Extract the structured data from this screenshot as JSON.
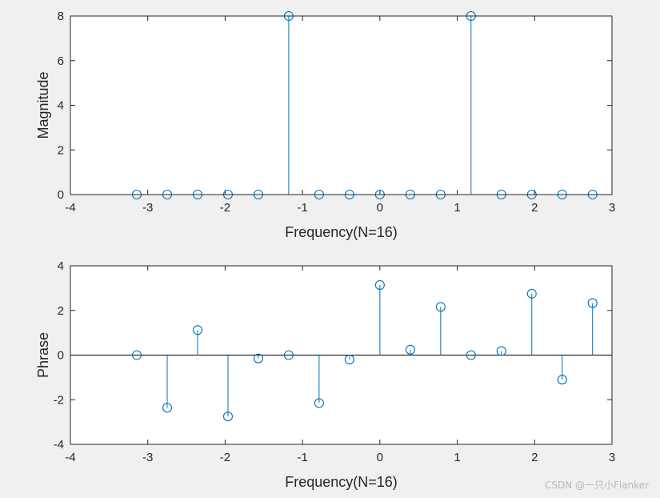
{
  "watermark": "CSDN @一只小Flanker",
  "colors": {
    "background": "#f0f0f0",
    "plot_background": "#ffffff",
    "axes": "#262626",
    "series": "#0072bd"
  },
  "chart_data": [
    {
      "type": "stem",
      "title": "",
      "xlabel": "Frequency(N=16)",
      "ylabel": "Magnitude",
      "xlim": [
        -4,
        3
      ],
      "ylim": [
        0,
        8
      ],
      "xticks": [
        -4,
        -3,
        -2,
        -1,
        0,
        1,
        2,
        3
      ],
      "yticks": [
        0,
        2,
        4,
        6,
        8
      ],
      "grid": false,
      "baseline": false,
      "marker": "circle-open",
      "x": [
        -3.1416,
        -2.7489,
        -2.3562,
        -1.9635,
        -1.5708,
        -1.1781,
        -0.7854,
        -0.3927,
        0,
        0.3927,
        0.7854,
        1.1781,
        1.5708,
        1.9635,
        2.3562,
        2.7489
      ],
      "values": [
        0,
        0,
        0,
        0,
        0,
        8,
        0,
        0,
        0,
        0,
        0,
        8,
        0,
        0,
        0,
        0
      ]
    },
    {
      "type": "stem",
      "title": "",
      "xlabel": "Frequency(N=16)",
      "ylabel": "Phrase",
      "xlim": [
        -4,
        3
      ],
      "ylim": [
        -4,
        4
      ],
      "xticks": [
        -4,
        -3,
        -2,
        -1,
        0,
        1,
        2,
        3
      ],
      "yticks": [
        -4,
        -2,
        0,
        2,
        4
      ],
      "grid": false,
      "baseline": true,
      "marker": "circle-open",
      "x": [
        -3.1416,
        -2.7489,
        -2.3562,
        -1.9635,
        -1.5708,
        -1.1781,
        -0.7854,
        -0.3927,
        0,
        0.3927,
        0.7854,
        1.1781,
        1.5708,
        1.9635,
        2.3562,
        2.7489
      ],
      "values": [
        0,
        -2.36,
        1.12,
        -2.75,
        -0.15,
        0,
        -2.15,
        -0.2,
        3.14,
        0.24,
        2.16,
        0,
        0.18,
        2.75,
        -1.1,
        2.33
      ]
    }
  ]
}
